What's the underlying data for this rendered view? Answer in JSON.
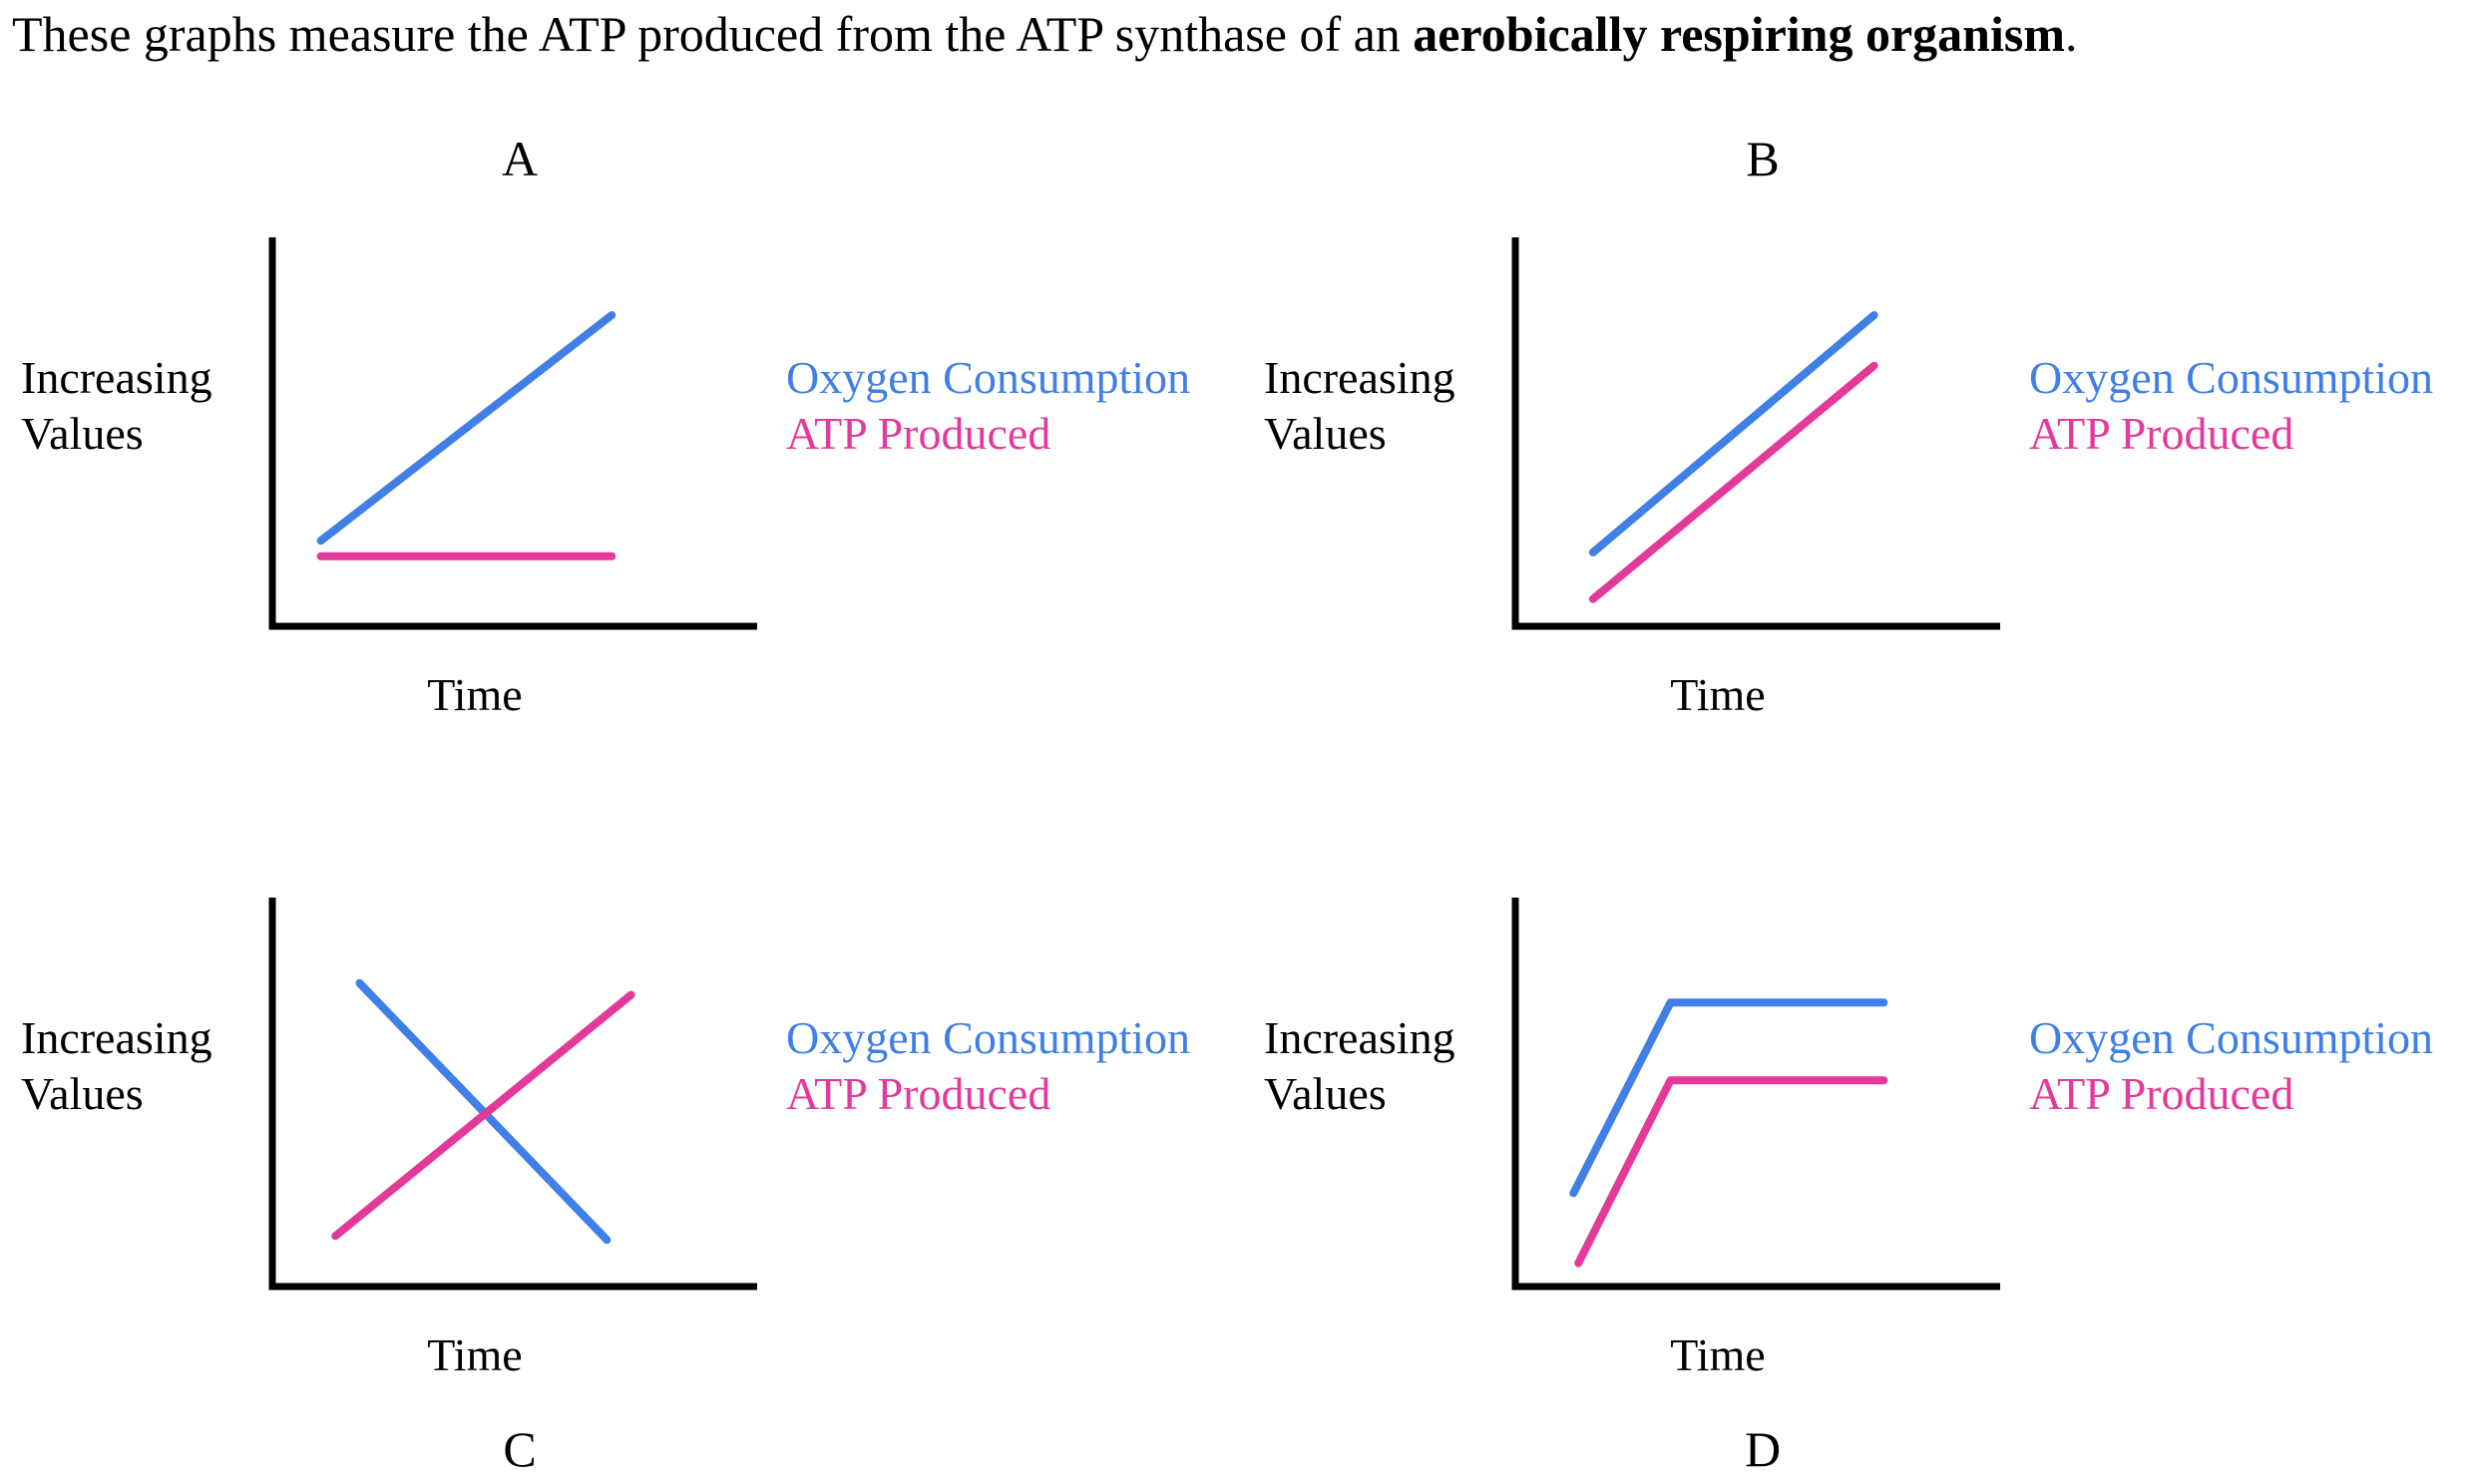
{
  "prompt": {
    "text_before": "These graphs measure the ATP produced from the ATP synthase of an ",
    "text_bold": "aerobically respiring organism",
    "text_after": "."
  },
  "colors": {
    "oxygen": "#3f7fe6",
    "atp": "#e3399a",
    "axis": "#000000"
  },
  "chart_data": [
    {
      "type": "line",
      "panel": "A",
      "xlabel": "Time",
      "ylabel": [
        "Increasing",
        "Values"
      ],
      "xlim": [
        0,
        10
      ],
      "ylim": [
        0,
        10
      ],
      "grid": false,
      "legend": "right",
      "series": [
        {
          "name": "Oxygen Consumption",
          "x": [
            1,
            7
          ],
          "y": [
            2.2,
            8.0
          ]
        },
        {
          "name": "ATP Produced",
          "x": [
            1,
            7
          ],
          "y": [
            1.8,
            1.8
          ]
        }
      ]
    },
    {
      "type": "line",
      "panel": "B",
      "xlabel": "Time",
      "ylabel": [
        "Increasing",
        "Values"
      ],
      "xlim": [
        0,
        10
      ],
      "ylim": [
        0,
        10
      ],
      "grid": false,
      "legend": "right",
      "series": [
        {
          "name": "Oxygen Consumption",
          "x": [
            1.6,
            7.4
          ],
          "y": [
            1.9,
            8.0
          ]
        },
        {
          "name": "ATP Produced",
          "x": [
            1.6,
            7.4
          ],
          "y": [
            0.7,
            6.7
          ]
        }
      ]
    },
    {
      "type": "line",
      "panel": "C",
      "xlabel": "Time",
      "ylabel": [
        "Increasing",
        "Values"
      ],
      "xlim": [
        0,
        10
      ],
      "ylim": [
        0,
        10
      ],
      "grid": false,
      "legend": "right",
      "series": [
        {
          "name": "Oxygen Consumption",
          "x": [
            1.8,
            6.9
          ],
          "y": [
            7.8,
            1.2
          ]
        },
        {
          "name": "ATP Produced",
          "x": [
            1.3,
            7.4
          ],
          "y": [
            1.3,
            7.5
          ]
        }
      ]
    },
    {
      "type": "line",
      "panel": "D",
      "xlabel": "Time",
      "ylabel": [
        "Increasing",
        "Values"
      ],
      "xlim": [
        0,
        10
      ],
      "ylim": [
        0,
        10
      ],
      "grid": false,
      "legend": "right",
      "series": [
        {
          "name": "Oxygen Consumption",
          "x": [
            1.2,
            3.2,
            7.6
          ],
          "y": [
            2.4,
            7.3,
            7.3
          ]
        },
        {
          "name": "ATP Produced",
          "x": [
            1.3,
            3.2,
            7.6
          ],
          "y": [
            0.6,
            5.3,
            5.3
          ]
        }
      ]
    }
  ]
}
